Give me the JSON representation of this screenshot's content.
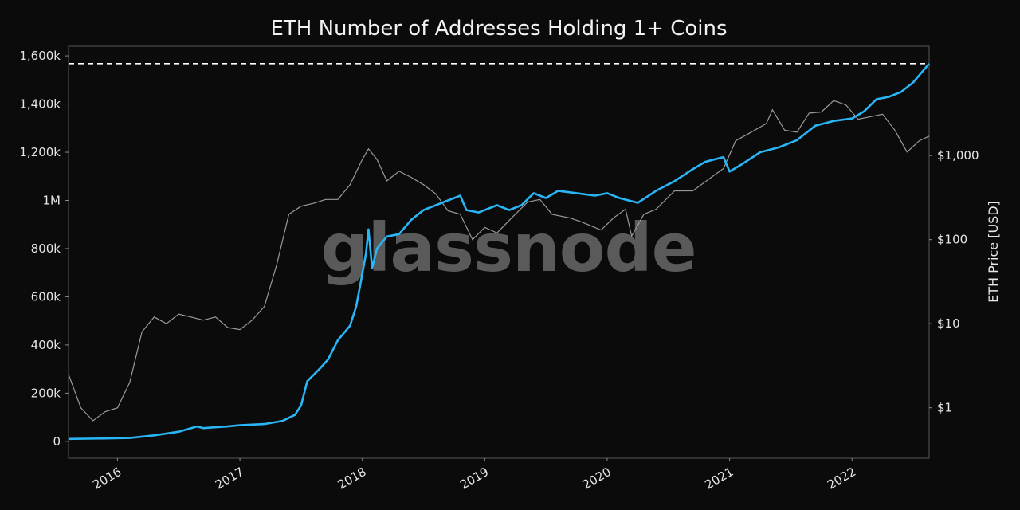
{
  "chart_data": {
    "type": "line",
    "title": "ETH Number of Addresses Holding 1+ Coins",
    "xlabel": "",
    "ylabel_left": "",
    "ylabel_right": "ETH Price [USD]",
    "watermark": "glassnode",
    "x_ticks": [
      "2016",
      "2017",
      "2018",
      "2019",
      "2020",
      "2021",
      "2022"
    ],
    "y_left_ticks": [
      {
        "value": 0,
        "label": "0"
      },
      {
        "value": 200000,
        "label": "200k"
      },
      {
        "value": 400000,
        "label": "400k"
      },
      {
        "value": 600000,
        "label": "600k"
      },
      {
        "value": 800000,
        "label": "800k"
      },
      {
        "value": 1000000,
        "label": "1M"
      },
      {
        "value": 1200000,
        "label": "1,200k"
      },
      {
        "value": 1400000,
        "label": "1,400k"
      },
      {
        "value": 1600000,
        "label": "1,600k"
      }
    ],
    "y_right_ticks": [
      {
        "value": 1,
        "label": "$1"
      },
      {
        "value": 10,
        "label": "$10"
      },
      {
        "value": 100,
        "label": "$100"
      },
      {
        "value": 1000,
        "label": "$1,000"
      }
    ],
    "x_range": [
      2015.6,
      2022.63
    ],
    "y_left_range": [
      -70000,
      1640000
    ],
    "y_right_log_range": [
      -0.6,
      4.3
    ],
    "reference_line": {
      "value": 1568000,
      "style": "dashed",
      "color": "#ffffff"
    },
    "series": [
      {
        "name": "Addresses Holding 1+ Coins",
        "axis": "left",
        "color": "#29b6f6",
        "points": [
          [
            2015.6,
            10000
          ],
          [
            2015.9,
            12000
          ],
          [
            2016.1,
            14000
          ],
          [
            2016.3,
            25000
          ],
          [
            2016.5,
            40000
          ],
          [
            2016.65,
            62000
          ],
          [
            2016.7,
            55000
          ],
          [
            2016.9,
            62000
          ],
          [
            2017.0,
            67000
          ],
          [
            2017.2,
            72000
          ],
          [
            2017.35,
            85000
          ],
          [
            2017.45,
            110000
          ],
          [
            2017.5,
            150000
          ],
          [
            2017.55,
            250000
          ],
          [
            2017.65,
            300000
          ],
          [
            2017.72,
            340000
          ],
          [
            2017.8,
            420000
          ],
          [
            2017.9,
            480000
          ],
          [
            2017.95,
            560000
          ],
          [
            2017.98,
            640000
          ],
          [
            2018.03,
            780000
          ],
          [
            2018.05,
            880000
          ],
          [
            2018.08,
            720000
          ],
          [
            2018.12,
            800000
          ],
          [
            2018.2,
            850000
          ],
          [
            2018.3,
            860000
          ],
          [
            2018.4,
            920000
          ],
          [
            2018.5,
            960000
          ],
          [
            2018.6,
            980000
          ],
          [
            2018.7,
            1000000
          ],
          [
            2018.8,
            1020000
          ],
          [
            2018.85,
            960000
          ],
          [
            2018.95,
            950000
          ],
          [
            2019.1,
            980000
          ],
          [
            2019.2,
            960000
          ],
          [
            2019.3,
            980000
          ],
          [
            2019.4,
            1030000
          ],
          [
            2019.5,
            1010000
          ],
          [
            2019.6,
            1040000
          ],
          [
            2019.75,
            1030000
          ],
          [
            2019.9,
            1020000
          ],
          [
            2020.0,
            1030000
          ],
          [
            2020.1,
            1010000
          ],
          [
            2020.25,
            990000
          ],
          [
            2020.4,
            1040000
          ],
          [
            2020.55,
            1080000
          ],
          [
            2020.7,
            1130000
          ],
          [
            2020.8,
            1160000
          ],
          [
            2020.95,
            1180000
          ],
          [
            2021.0,
            1120000
          ],
          [
            2021.1,
            1150000
          ],
          [
            2021.25,
            1200000
          ],
          [
            2021.4,
            1220000
          ],
          [
            2021.55,
            1250000
          ],
          [
            2021.7,
            1310000
          ],
          [
            2021.85,
            1330000
          ],
          [
            2022.0,
            1340000
          ],
          [
            2022.1,
            1370000
          ],
          [
            2022.2,
            1420000
          ],
          [
            2022.3,
            1430000
          ],
          [
            2022.4,
            1450000
          ],
          [
            2022.5,
            1490000
          ],
          [
            2022.63,
            1568000
          ]
        ]
      },
      {
        "name": "ETH Price [USD]",
        "axis": "right",
        "color": "#9a9a9a",
        "points": [
          [
            2015.6,
            2.5
          ],
          [
            2015.7,
            1.0
          ],
          [
            2015.8,
            0.7
          ],
          [
            2015.9,
            0.9
          ],
          [
            2016.0,
            1.0
          ],
          [
            2016.1,
            2.0
          ],
          [
            2016.2,
            8.0
          ],
          [
            2016.3,
            12.0
          ],
          [
            2016.4,
            10.0
          ],
          [
            2016.5,
            13.0
          ],
          [
            2016.6,
            12.0
          ],
          [
            2016.7,
            11.0
          ],
          [
            2016.8,
            12.0
          ],
          [
            2016.9,
            9.0
          ],
          [
            2017.0,
            8.5
          ],
          [
            2017.1,
            11.0
          ],
          [
            2017.2,
            16.0
          ],
          [
            2017.3,
            50.0
          ],
          [
            2017.4,
            200.0
          ],
          [
            2017.5,
            250.0
          ],
          [
            2017.6,
            270.0
          ],
          [
            2017.7,
            300.0
          ],
          [
            2017.8,
            300.0
          ],
          [
            2017.9,
            450.0
          ],
          [
            2018.0,
            900.0
          ],
          [
            2018.05,
            1200.0
          ],
          [
            2018.12,
            900.0
          ],
          [
            2018.2,
            500.0
          ],
          [
            2018.3,
            650.0
          ],
          [
            2018.4,
            550.0
          ],
          [
            2018.5,
            450.0
          ],
          [
            2018.6,
            350.0
          ],
          [
            2018.7,
            220.0
          ],
          [
            2018.8,
            200.0
          ],
          [
            2018.9,
            100.0
          ],
          [
            2019.0,
            140.0
          ],
          [
            2019.1,
            120.0
          ],
          [
            2019.2,
            170.0
          ],
          [
            2019.35,
            280.0
          ],
          [
            2019.45,
            300.0
          ],
          [
            2019.55,
            200.0
          ],
          [
            2019.7,
            180.0
          ],
          [
            2019.8,
            160.0
          ],
          [
            2019.95,
            130.0
          ],
          [
            2020.05,
            180.0
          ],
          [
            2020.15,
            230.0
          ],
          [
            2020.2,
            110.0
          ],
          [
            2020.3,
            200.0
          ],
          [
            2020.4,
            230.0
          ],
          [
            2020.55,
            380.0
          ],
          [
            2020.7,
            380.0
          ],
          [
            2020.85,
            550.0
          ],
          [
            2020.95,
            700.0
          ],
          [
            2021.05,
            1500.0
          ],
          [
            2021.15,
            1800.0
          ],
          [
            2021.3,
            2400.0
          ],
          [
            2021.35,
            3500.0
          ],
          [
            2021.45,
            2000.0
          ],
          [
            2021.55,
            1900.0
          ],
          [
            2021.65,
            3200.0
          ],
          [
            2021.75,
            3300.0
          ],
          [
            2021.85,
            4500.0
          ],
          [
            2021.95,
            4000.0
          ],
          [
            2022.05,
            2700.0
          ],
          [
            2022.15,
            2900.0
          ],
          [
            2022.25,
            3100.0
          ],
          [
            2022.35,
            2000.0
          ],
          [
            2022.45,
            1100.0
          ],
          [
            2022.55,
            1500.0
          ],
          [
            2022.63,
            1700.0
          ]
        ]
      }
    ]
  }
}
